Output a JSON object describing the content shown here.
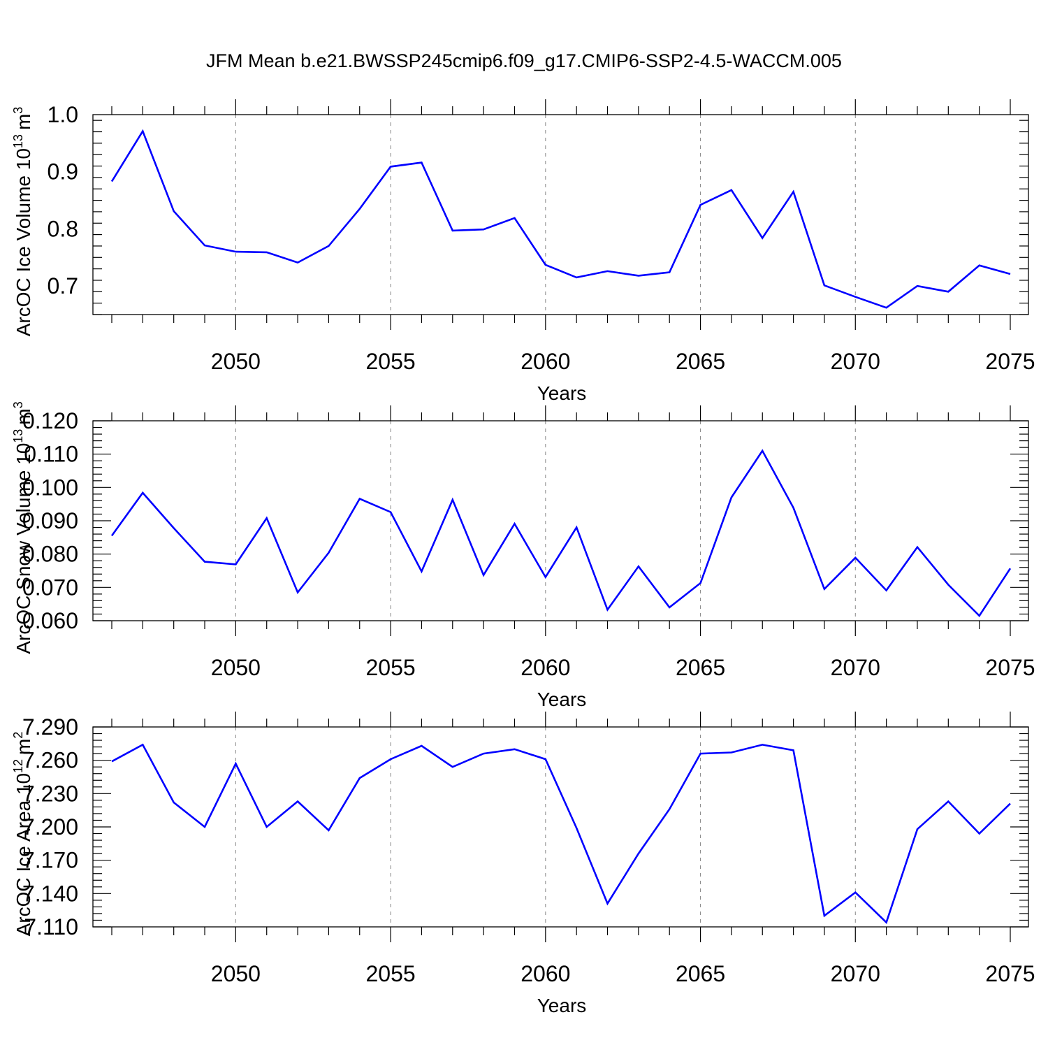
{
  "title": "JFM Mean b.e21.BWSSP245cmip6.f09_g17.CMIP6-SSP2-4.5-WACCM.005",
  "colors": {
    "series": "#0000ff",
    "grid": "#888888",
    "frame": "#000000"
  },
  "chart_data": [
    {
      "type": "line",
      "xlabel": "Years",
      "ylabel": "ArcOC Ice Volume 10",
      "ylabel_exponent": "13",
      "ylabel_unit": "m",
      "ylabel_unit_exponent": "3",
      "xlim": [
        2046,
        2075
      ],
      "ylim": [
        0.65,
        1.0
      ],
      "x_ticks": [
        "2050",
        "2055",
        "2060",
        "2065",
        "2070",
        "2075"
      ],
      "y_ticks": [
        "0.7",
        "0.8",
        "0.9",
        "1.0"
      ],
      "grid": "vertical dashed at major x ticks",
      "x": [
        2046,
        2047,
        2048,
        2049,
        2050,
        2051,
        2052,
        2053,
        2054,
        2055,
        2056,
        2057,
        2058,
        2059,
        2060,
        2061,
        2062,
        2063,
        2064,
        2065,
        2066,
        2067,
        2068,
        2069,
        2070,
        2071,
        2072,
        2073,
        2074,
        2075
      ],
      "values": [
        0.883,
        0.971,
        0.831,
        0.771,
        0.76,
        0.759,
        0.741,
        0.77,
        0.835,
        0.909,
        0.916,
        0.797,
        0.799,
        0.819,
        0.737,
        0.715,
        0.726,
        0.718,
        0.724,
        0.842,
        0.868,
        0.784,
        0.865,
        0.701,
        0.681,
        0.662,
        0.7,
        0.69,
        0.736,
        0.721
      ]
    },
    {
      "type": "line",
      "xlabel": "Years",
      "ylabel": "ArcOC Snow Volume 10",
      "ylabel_exponent": "13",
      "ylabel_unit": "m",
      "ylabel_unit_exponent": "3",
      "xlim": [
        2046,
        2075
      ],
      "ylim": [
        0.06,
        0.12
      ],
      "x_ticks": [
        "2050",
        "2055",
        "2060",
        "2065",
        "2070",
        "2075"
      ],
      "y_ticks": [
        "0.060",
        "0.070",
        "0.080",
        "0.090",
        "0.100",
        "0.110",
        "0.120"
      ],
      "grid": "vertical dashed at major x ticks",
      "x": [
        2046,
        2047,
        2048,
        2049,
        2050,
        2051,
        2052,
        2053,
        2054,
        2055,
        2056,
        2057,
        2058,
        2059,
        2060,
        2061,
        2062,
        2063,
        2064,
        2065,
        2066,
        2067,
        2068,
        2069,
        2070,
        2071,
        2072,
        2073,
        2074,
        2075
      ],
      "values": [
        0.0855,
        0.0984,
        0.0878,
        0.0777,
        0.0769,
        0.0908,
        0.0685,
        0.0804,
        0.0966,
        0.0926,
        0.0748,
        0.0963,
        0.0737,
        0.0891,
        0.0731,
        0.088,
        0.0633,
        0.0763,
        0.064,
        0.0713,
        0.097,
        0.111,
        0.0939,
        0.0695,
        0.0789,
        0.0691,
        0.0821,
        0.0708,
        0.0615,
        0.0757
      ]
    },
    {
      "type": "line",
      "xlabel": "Years",
      "ylabel": "ArcOC Ice Area 10",
      "ylabel_exponent": "12",
      "ylabel_unit": "m",
      "ylabel_unit_exponent": "2",
      "xlim": [
        2046,
        2075
      ],
      "ylim": [
        7.11,
        7.29
      ],
      "x_ticks": [
        "2050",
        "2055",
        "2060",
        "2065",
        "2070",
        "2075"
      ],
      "y_ticks": [
        "7.110",
        "7.140",
        "7.170",
        "7.200",
        "7.230",
        "7.260",
        "7.290"
      ],
      "grid": "vertical dashed at major x ticks",
      "x": [
        2046,
        2047,
        2048,
        2049,
        2050,
        2051,
        2052,
        2053,
        2054,
        2055,
        2056,
        2057,
        2058,
        2059,
        2060,
        2061,
        2062,
        2063,
        2064,
        2065,
        2066,
        2067,
        2068,
        2069,
        2070,
        2071,
        2072,
        2073,
        2074,
        2075
      ],
      "values": [
        7.259,
        7.274,
        7.222,
        7.2,
        7.257,
        7.2,
        7.223,
        7.197,
        7.244,
        7.261,
        7.273,
        7.254,
        7.266,
        7.27,
        7.261,
        7.199,
        7.131,
        7.176,
        7.216,
        7.266,
        7.267,
        7.274,
        7.269,
        7.12,
        7.141,
        7.114,
        7.198,
        7.223,
        7.194,
        7.221
      ]
    }
  ]
}
